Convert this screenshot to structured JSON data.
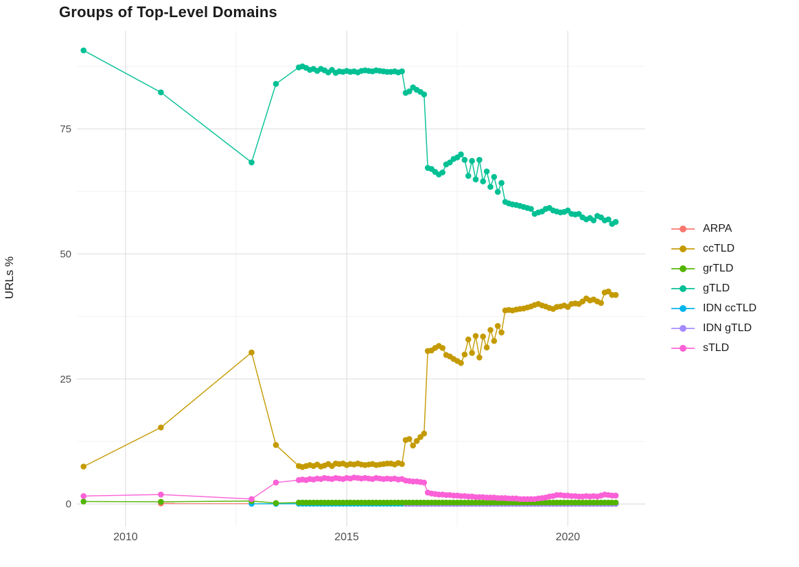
{
  "title": "Groups of Top-Level Domains",
  "chart_data": {
    "type": "line",
    "title": "Groups of Top-Level Domains",
    "xlabel": "",
    "ylabel": "URLs %",
    "grid": true,
    "legend_position": "right",
    "xlim": [
      2008.9,
      2021.75
    ],
    "ylim": [
      -4.5,
      94.6
    ],
    "x_ticks": [
      2010,
      2015,
      2020
    ],
    "x_minor_ticks": [
      2012.5,
      2017.5
    ],
    "y_ticks": [
      0,
      25,
      50,
      75
    ],
    "y_minor_ticks": [
      12.5,
      37.5,
      62.5,
      87.5
    ],
    "tick_label_color": "#4d4d4d",
    "series": [
      {
        "name": "ARPA",
        "color": "#F8766D",
        "z": 1,
        "pre": [
          [
            2010.8,
            0.12
          ],
          [
            2012.85,
            0.1
          ]
        ]
      },
      {
        "name": "ccTLD",
        "color": "#C49A00",
        "z": 4,
        "pre": [
          [
            2009.05,
            7.5
          ],
          [
            2010.8,
            15.3
          ],
          [
            2012.85,
            30.3
          ],
          [
            2013.4,
            11.8
          ]
        ],
        "monthly": {
          "start": 2013.9167,
          "values": [
            7.6,
            7.4,
            7.6,
            7.8,
            7.6,
            7.9,
            7.5,
            7.7,
            8.0,
            7.6,
            8.1,
            8.0,
            8.1,
            7.8,
            8.0,
            7.9,
            8.1,
            7.9,
            7.8,
            7.9,
            8.0,
            7.8,
            7.9,
            8.0,
            8.1,
            8.1,
            7.9,
            8.2,
            8.0,
            12.8,
            13.0,
            11.7,
            12.6,
            13.4,
            14.1,
            30.6,
            30.7,
            31.2,
            31.6,
            31.2,
            29.8,
            29.5,
            29.0,
            28.6,
            28.2,
            29.9,
            32.9,
            30.2,
            33.6,
            29.3,
            33.5,
            31.3,
            34.8,
            32.6,
            35.6,
            34.3,
            38.7,
            38.8,
            38.7,
            38.9,
            39.0,
            39.1,
            39.3,
            39.5,
            39.8,
            40.0,
            39.7,
            39.5,
            39.2,
            39.0,
            39.4,
            39.5,
            39.7,
            39.4,
            40.0,
            40.1,
            40.0,
            40.5,
            41.1,
            40.7,
            40.9,
            40.5,
            40.2,
            42.3,
            42.5,
            41.8,
            41.8
          ]
        }
      },
      {
        "name": "grTLD",
        "color": "#53B400",
        "z": 6,
        "pre": [
          [
            2009.05,
            0.5
          ],
          [
            2010.8,
            0.45
          ],
          [
            2012.85,
            0.6
          ],
          [
            2013.4,
            0.2
          ]
        ],
        "monthly": {
          "start": 2013.9167,
          "const": 0.3,
          "count": 87
        }
      },
      {
        "name": "gTLD",
        "color": "#00C094",
        "z": 5,
        "pre": [
          [
            2009.05,
            90.7
          ],
          [
            2010.8,
            82.3
          ],
          [
            2012.85,
            68.3
          ],
          [
            2013.4,
            84.0
          ]
        ],
        "monthly": {
          "start": 2013.9167,
          "values": [
            87.3,
            87.5,
            87.2,
            86.8,
            87.0,
            86.6,
            87.0,
            86.7,
            86.3,
            86.8,
            86.2,
            86.5,
            86.4,
            86.6,
            86.4,
            86.5,
            86.3,
            86.6,
            86.7,
            86.6,
            86.5,
            86.7,
            86.6,
            86.5,
            86.4,
            86.4,
            86.5,
            86.3,
            86.5,
            82.2,
            82.5,
            83.3,
            82.8,
            82.4,
            81.9,
            67.2,
            67.0,
            66.4,
            65.9,
            66.3,
            67.9,
            68.3,
            69.0,
            69.3,
            69.9,
            68.8,
            65.6,
            68.6,
            64.9,
            68.8,
            64.5,
            66.5,
            63.4,
            65.4,
            62.4,
            64.2,
            60.4,
            60.1,
            59.9,
            59.8,
            59.6,
            59.4,
            59.2,
            59.0,
            58.0,
            58.3,
            58.5,
            59.0,
            59.2,
            58.7,
            58.5,
            58.3,
            58.4,
            58.7,
            58.0,
            57.9,
            58.0,
            57.3,
            56.9,
            57.2,
            56.7,
            57.6,
            57.3,
            56.7,
            56.9,
            56.0,
            56.4
          ]
        }
      },
      {
        "name": "IDN ccTLD",
        "color": "#00B6EB",
        "z": 2,
        "pre": [
          [
            2012.85,
            0.06
          ],
          [
            2013.4,
            0.05
          ]
        ],
        "monthly": {
          "start": 2013.9167,
          "const": 0.07,
          "count": 87
        }
      },
      {
        "name": "IDN gTLD",
        "color": "#A58AFF",
        "z": 3,
        "monthly": {
          "start": 2016.3333,
          "const": 0.02,
          "count": 58
        }
      },
      {
        "name": "sTLD",
        "color": "#FB61D7",
        "z": 7,
        "pre": [
          [
            2009.05,
            1.6
          ],
          [
            2010.8,
            1.9
          ],
          [
            2012.85,
            1.0
          ],
          [
            2013.4,
            4.3
          ]
        ],
        "monthly": {
          "start": 2013.9167,
          "values": [
            4.8,
            4.9,
            4.8,
            5.0,
            4.9,
            5.1,
            5.0,
            5.2,
            5.1,
            5.0,
            5.2,
            5.1,
            5.0,
            5.2,
            5.1,
            5.3,
            5.2,
            5.1,
            5.2,
            5.1,
            5.0,
            5.2,
            5.1,
            5.0,
            5.1,
            5.0,
            5.1,
            4.9,
            5.0,
            4.7,
            4.6,
            4.5,
            4.5,
            4.4,
            4.3,
            2.3,
            2.1,
            2.0,
            1.9,
            1.9,
            1.8,
            1.8,
            1.7,
            1.7,
            1.6,
            1.6,
            1.5,
            1.5,
            1.4,
            1.4,
            1.4,
            1.3,
            1.3,
            1.3,
            1.2,
            1.2,
            1.2,
            1.1,
            1.1,
            1.1,
            1.0,
            1.0,
            1.0,
            1.0,
            1.0,
            1.1,
            1.2,
            1.3,
            1.5,
            1.6,
            1.8,
            1.8,
            1.7,
            1.7,
            1.6,
            1.6,
            1.5,
            1.5,
            1.6,
            1.5,
            1.6,
            1.5,
            1.7,
            1.9,
            1.8,
            1.7,
            1.7
          ]
        }
      }
    ]
  }
}
